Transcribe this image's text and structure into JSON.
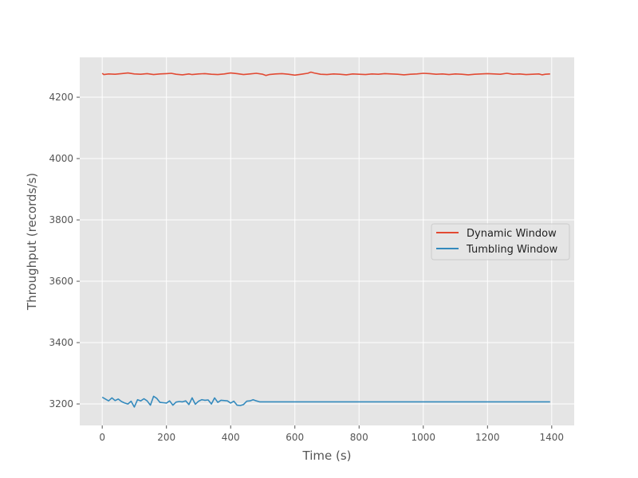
{
  "chart_data": {
    "type": "line",
    "title": "",
    "xlabel": "Time (s)",
    "ylabel": "Throughput (records/s)",
    "xlim": [
      -70,
      1470
    ],
    "ylim": [
      3130,
      4330
    ],
    "xticks": [
      0,
      200,
      400,
      600,
      800,
      1000,
      1200,
      1400
    ],
    "yticks": [
      3200,
      3400,
      3600,
      3800,
      4000,
      4200
    ],
    "grid": true,
    "style": "ggplot",
    "legend_position": "center-right",
    "series": [
      {
        "name": "Dynamic Window",
        "color": "#E24A33",
        "x": [
          0,
          5,
          20,
          40,
          60,
          80,
          100,
          120,
          140,
          160,
          180,
          200,
          215,
          230,
          250,
          270,
          280,
          300,
          320,
          340,
          360,
          380,
          400,
          420,
          440,
          460,
          480,
          500,
          510,
          520,
          540,
          560,
          580,
          600,
          620,
          640,
          650,
          660,
          680,
          700,
          720,
          740,
          760,
          780,
          800,
          820,
          840,
          860,
          880,
          900,
          920,
          940,
          960,
          980,
          1000,
          1020,
          1040,
          1060,
          1080,
          1100,
          1120,
          1140,
          1160,
          1180,
          1200,
          1220,
          1240,
          1260,
          1280,
          1300,
          1320,
          1340,
          1360,
          1370,
          1380,
          1395
        ],
        "values": [
          4278,
          4274,
          4276,
          4275,
          4277,
          4279,
          4276,
          4275,
          4277,
          4274,
          4276,
          4277,
          4278,
          4275,
          4273,
          4276,
          4274,
          4276,
          4277,
          4275,
          4274,
          4276,
          4279,
          4277,
          4274,
          4276,
          4278,
          4275,
          4271,
          4274,
          4276,
          4277,
          4275,
          4272,
          4275,
          4278,
          4282,
          4279,
          4275,
          4274,
          4276,
          4275,
          4273,
          4276,
          4275,
          4274,
          4276,
          4275,
          4277,
          4276,
          4275,
          4273,
          4275,
          4276,
          4278,
          4277,
          4275,
          4276,
          4274,
          4276,
          4275,
          4273,
          4275,
          4276,
          4277,
          4276,
          4275,
          4278,
          4275,
          4276,
          4274,
          4275,
          4276,
          4273,
          4275,
          4276
        ]
      },
      {
        "name": "Tumbling Window",
        "color": "#348ABD",
        "x": [
          0,
          10,
          20,
          30,
          40,
          50,
          60,
          70,
          80,
          90,
          100,
          110,
          120,
          130,
          140,
          150,
          160,
          170,
          180,
          190,
          200,
          210,
          220,
          230,
          240,
          250,
          260,
          270,
          280,
          290,
          300,
          310,
          320,
          330,
          340,
          350,
          360,
          370,
          380,
          390,
          400,
          410,
          420,
          430,
          440,
          450,
          460,
          470,
          480,
          490,
          500,
          600,
          700,
          800,
          900,
          1000,
          1100,
          1200,
          1300,
          1395
        ],
        "values": [
          3222,
          3216,
          3210,
          3220,
          3211,
          3216,
          3208,
          3203,
          3200,
          3209,
          3190,
          3214,
          3210,
          3217,
          3210,
          3196,
          3225,
          3218,
          3205,
          3204,
          3203,
          3210,
          3196,
          3206,
          3208,
          3207,
          3210,
          3198,
          3220,
          3199,
          3209,
          3214,
          3212,
          3213,
          3200,
          3220,
          3205,
          3212,
          3211,
          3210,
          3203,
          3209,
          3196,
          3195,
          3198,
          3209,
          3210,
          3214,
          3210,
          3207,
          3207,
          3207,
          3207,
          3207,
          3207,
          3207,
          3207,
          3207,
          3207,
          3207
        ]
      }
    ]
  }
}
